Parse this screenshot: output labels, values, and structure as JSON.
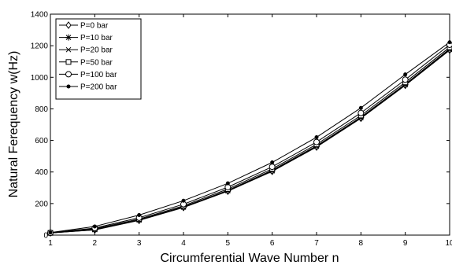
{
  "chart_data": {
    "type": "line",
    "xlabel": "Circumferential Wave Number n",
    "ylabel": "Natural Ferequency w(Hz)",
    "xlim": [
      1,
      10
    ],
    "ylim": [
      0,
      1400
    ],
    "x": [
      1,
      2,
      3,
      4,
      5,
      6,
      7,
      8,
      9,
      10
    ],
    "xticks": [
      "1",
      "2",
      "3",
      "4",
      "5",
      "6",
      "7",
      "8",
      "9",
      "10"
    ],
    "yticks": [
      "0",
      "200",
      "400",
      "600",
      "800",
      "1000",
      "1200",
      "1400"
    ],
    "grid": false,
    "legend_position": "top-left",
    "series": [
      {
        "name": "P=0 bar",
        "marker": "diamond",
        "values": [
          14,
          33,
          93,
          175,
          278,
          404,
          558,
          740,
          949,
          1172
        ]
      },
      {
        "name": "P=10 bar",
        "marker": "star",
        "values": [
          14,
          34,
          95,
          177,
          281,
          407,
          562,
          744,
          953,
          1176
        ]
      },
      {
        "name": "P=20 bar",
        "marker": "x",
        "values": [
          14,
          36,
          97,
          180,
          284,
          411,
          566,
          748,
          957,
          1180
        ]
      },
      {
        "name": "P=50 bar",
        "marker": "square",
        "values": [
          14,
          40,
          102,
          186,
          292,
          420,
          575,
          758,
          968,
          1190
        ]
      },
      {
        "name": "P=100 bar",
        "marker": "circle",
        "values": [
          15,
          45,
          110,
          196,
          304,
          433,
          590,
          774,
          985,
          1206
        ]
      },
      {
        "name": "P=200 bar",
        "marker": "filled-dot",
        "values": [
          16,
          55,
          127,
          218,
          328,
          461,
          620,
          806,
          1018,
          1222
        ]
      }
    ]
  }
}
